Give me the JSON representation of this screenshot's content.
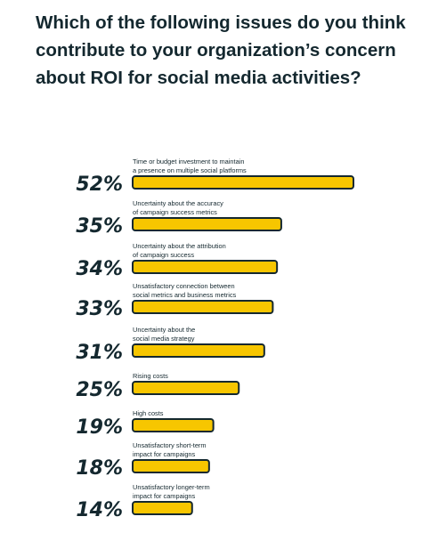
{
  "title": "Which of the following issues do you think contribute to your organization’s concern about ROI for social media activities?",
  "colors": {
    "bar_fill": "#f7c600",
    "bar_outline": "#14282f",
    "text": "#14282f"
  },
  "chart_data": {
    "type": "bar",
    "orientation": "horizontal",
    "title": "Which of the following issues do you think contribute to your organization’s concern about ROI for social media activities?",
    "xlabel": "",
    "ylabel": "",
    "xlim": [
      0,
      52
    ],
    "grid": false,
    "categories": [
      [
        "Time or budget investment to maintain",
        "a presence on multiple social platforms"
      ],
      [
        "Uncertainty about the accuracy",
        "of campaign success metrics"
      ],
      [
        "Uncertainty about the attribution",
        "of campaign success"
      ],
      [
        "Unsatisfactory connection between",
        "social metrics and business metrics"
      ],
      [
        "Uncertainty about the",
        "social media strategy"
      ],
      [
        "Rising costs"
      ],
      [
        "High costs"
      ],
      [
        "Unsatisfactory short-term",
        "impact for campaigns"
      ],
      [
        "Unsatisfactory longer-term",
        "impact for campaigns"
      ]
    ],
    "values": [
      52,
      35,
      34,
      33,
      31,
      25,
      19,
      18,
      14
    ],
    "value_labels": [
      "52%",
      "35%",
      "34%",
      "33%",
      "31%",
      "25%",
      "19%",
      "18%",
      "14%"
    ]
  }
}
